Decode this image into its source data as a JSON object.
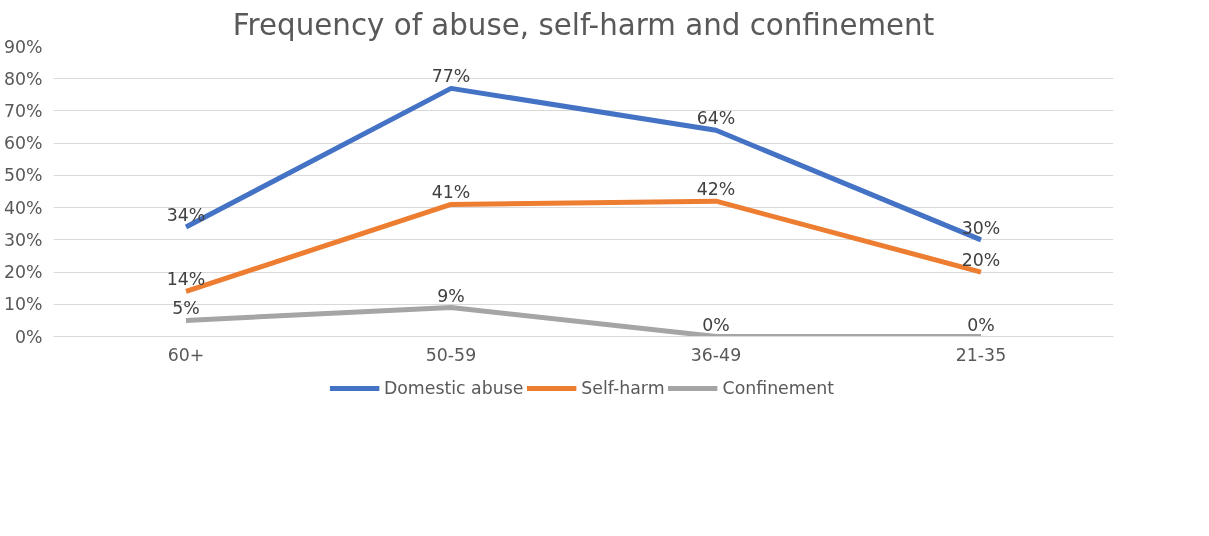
{
  "chart_data": {
    "type": "line",
    "title": "Frequency of abuse, self-harm and confinement",
    "categories": [
      "60+",
      "50-59",
      "36-49",
      "21-35"
    ],
    "series": [
      {
        "name": "Domestic abuse",
        "color": "#4472c4",
        "values": [
          34,
          77,
          64,
          30
        ],
        "value_labels": [
          "34%",
          "77%",
          "64%",
          "30%"
        ]
      },
      {
        "name": "Self-harm",
        "color": "#ed7d31",
        "values": [
          14,
          41,
          42,
          20
        ],
        "value_labels": [
          "14%",
          "41%",
          "42%",
          "20%"
        ]
      },
      {
        "name": "Confinement",
        "color": "#a5a5a5",
        "values": [
          5,
          9,
          0,
          0
        ],
        "value_labels": [
          "5%",
          "9%",
          "0%",
          "0%"
        ]
      }
    ],
    "ylim": [
      0,
      90
    ],
    "yticks": [
      {
        "value": 0,
        "label": "0%"
      },
      {
        "value": 10,
        "label": "10%"
      },
      {
        "value": 20,
        "label": "20%"
      },
      {
        "value": 30,
        "label": "30%"
      },
      {
        "value": 40,
        "label": "40%"
      },
      {
        "value": 50,
        "label": "50%"
      },
      {
        "value": 60,
        "label": "60%"
      },
      {
        "value": 70,
        "label": "70%"
      },
      {
        "value": 80,
        "label": "80%"
      },
      {
        "value": 90,
        "label": "90%"
      }
    ],
    "grid": "y",
    "legend": "bottom",
    "marker": "none",
    "line_style": "solid"
  }
}
